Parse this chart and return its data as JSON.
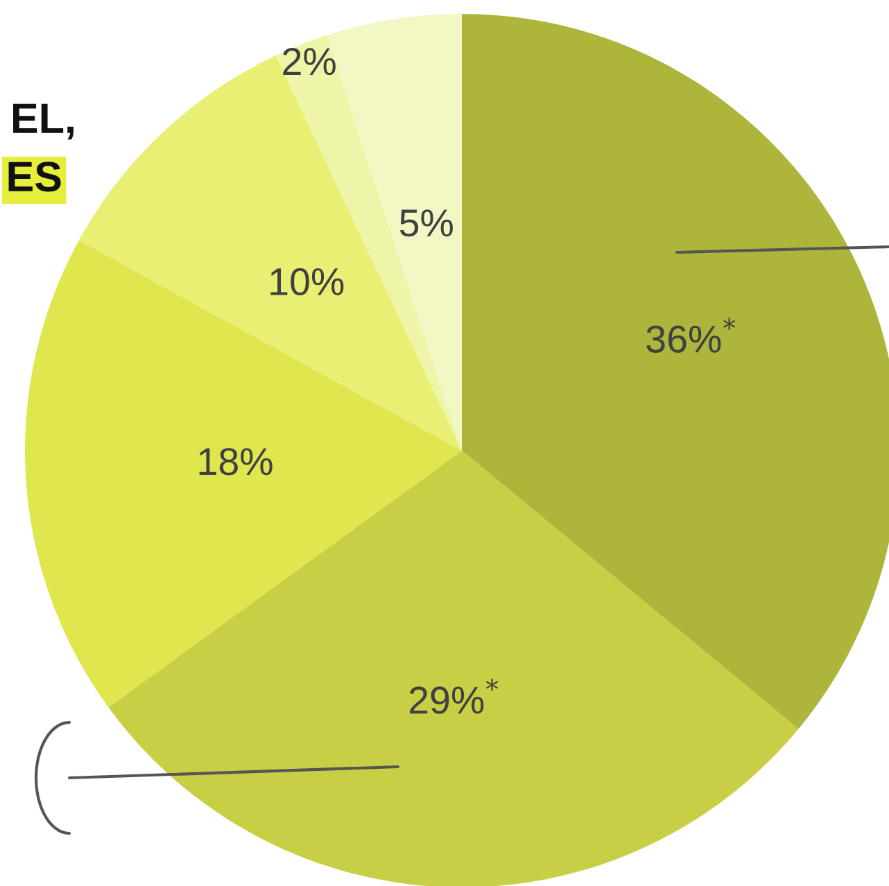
{
  "chart_data": {
    "type": "pie",
    "categories": [
      null,
      null,
      null,
      null,
      null,
      null
    ],
    "values": [
      36,
      29,
      18,
      10,
      2,
      5
    ],
    "colors": [
      "#adb53a",
      "#c8cf45",
      "#dfe64e",
      "#e9ef72",
      "#eef4a8",
      "#f3f7c4"
    ],
    "value_labels": [
      "36%$^{*}$",
      "29%$^{*}$",
      "18%",
      "10%",
      "2%",
      "5%"
    ],
    "annotations": [
      "EL,",
      "ES"
    ],
    "legend": false
  }
}
